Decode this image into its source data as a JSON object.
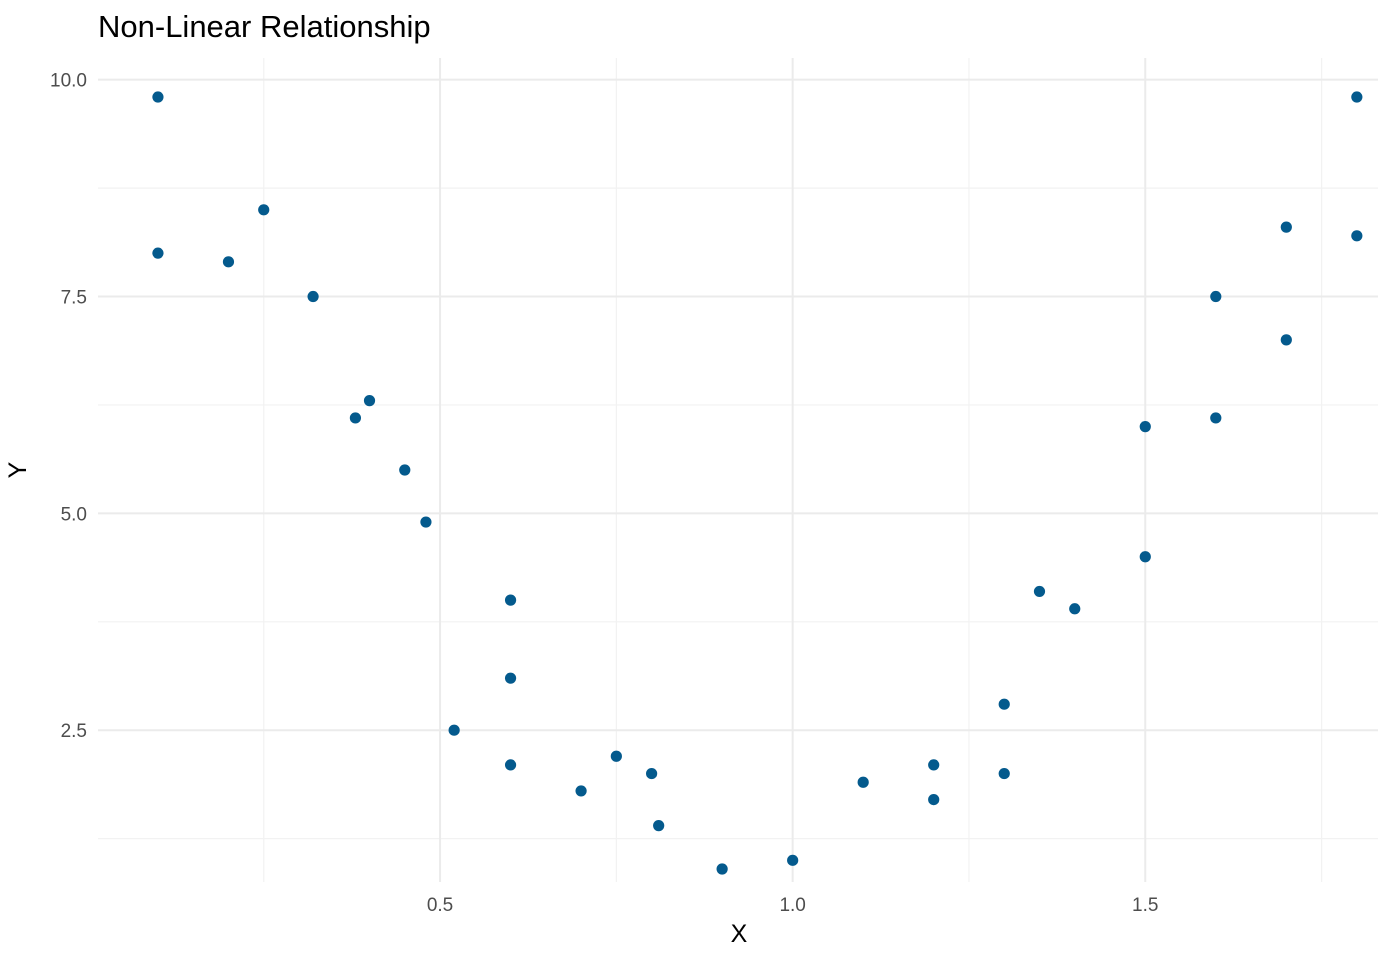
{
  "chart_data": {
    "type": "scatter",
    "title": "Non-Linear Relationship",
    "xlabel": "X",
    "ylabel": "Y",
    "xlim": [
      0.015,
      1.83
    ],
    "ylim": [
      0.75,
      10.25
    ],
    "x_ticks": [
      {
        "value": 0.5,
        "label": "0.5"
      },
      {
        "value": 1.0,
        "label": "1.0"
      },
      {
        "value": 1.5,
        "label": "1.5"
      }
    ],
    "x_minor": [
      0.25,
      0.75,
      1.25,
      1.75
    ],
    "y_ticks": [
      {
        "value": 2.5,
        "label": "2.5"
      },
      {
        "value": 5.0,
        "label": "5.0"
      },
      {
        "value": 7.5,
        "label": "7.5"
      },
      {
        "value": 10.0,
        "label": "10.0"
      }
    ],
    "y_minor": [
      1.25,
      3.75,
      6.25,
      8.75
    ],
    "grid": true,
    "point_color": "#045a8d",
    "points": [
      {
        "x": 0.1,
        "y": 9.8
      },
      {
        "x": 0.1,
        "y": 8.0
      },
      {
        "x": 0.2,
        "y": 7.9
      },
      {
        "x": 0.25,
        "y": 8.5
      },
      {
        "x": 0.32,
        "y": 7.5
      },
      {
        "x": 0.38,
        "y": 6.1
      },
      {
        "x": 0.4,
        "y": 6.3
      },
      {
        "x": 0.45,
        "y": 5.5
      },
      {
        "x": 0.48,
        "y": 4.9
      },
      {
        "x": 0.52,
        "y": 2.5
      },
      {
        "x": 0.6,
        "y": 4.0
      },
      {
        "x": 0.6,
        "y": 3.1
      },
      {
        "x": 0.6,
        "y": 2.1
      },
      {
        "x": 0.7,
        "y": 1.8
      },
      {
        "x": 0.75,
        "y": 2.2
      },
      {
        "x": 0.8,
        "y": 2.0
      },
      {
        "x": 0.81,
        "y": 1.4
      },
      {
        "x": 0.9,
        "y": 0.9
      },
      {
        "x": 1.0,
        "y": 1.0
      },
      {
        "x": 1.1,
        "y": 1.9
      },
      {
        "x": 1.2,
        "y": 2.1
      },
      {
        "x": 1.2,
        "y": 1.7
      },
      {
        "x": 1.3,
        "y": 2.8
      },
      {
        "x": 1.3,
        "y": 2.0
      },
      {
        "x": 1.35,
        "y": 4.1
      },
      {
        "x": 1.4,
        "y": 3.9
      },
      {
        "x": 1.5,
        "y": 6.0
      },
      {
        "x": 1.5,
        "y": 4.5
      },
      {
        "x": 1.6,
        "y": 7.5
      },
      {
        "x": 1.6,
        "y": 6.1
      },
      {
        "x": 1.7,
        "y": 8.3
      },
      {
        "x": 1.7,
        "y": 7.0
      },
      {
        "x": 1.8,
        "y": 9.8
      },
      {
        "x": 1.8,
        "y": 8.2
      }
    ]
  }
}
